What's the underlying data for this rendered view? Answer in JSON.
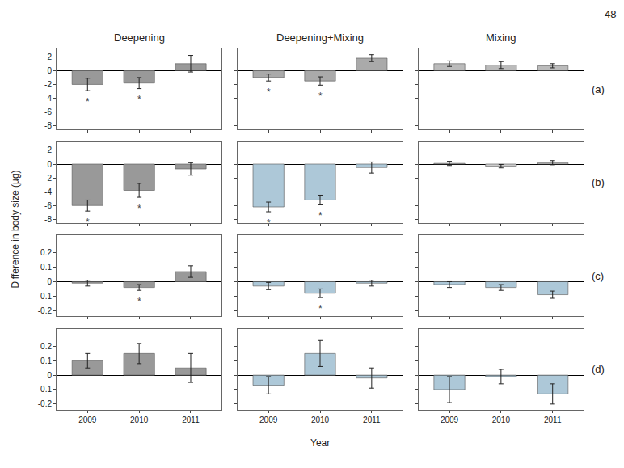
{
  "chart_data": {
    "type": "bar",
    "columns": [
      "Deepening",
      "Deepening+Mixing",
      "Mixing"
    ],
    "ylabel": "Difference in body size (µg)",
    "xlabel": "Year",
    "annotations": [
      "48"
    ],
    "categories": [
      "2009",
      "2010",
      "2011"
    ],
    "grid": false,
    "sig_label": "*",
    "rows": [
      {
        "label": "(a)",
        "ylim": [
          -8.5,
          3.2
        ],
        "yticks": [
          2,
          0,
          -2,
          -4,
          -6,
          -8
        ],
        "series": [
          {
            "color": "#999999",
            "values": [
              -2.0,
              -1.8,
              1.0
            ],
            "errors": [
              0.9,
              0.8,
              1.2
            ],
            "sig": [
              true,
              true,
              false
            ]
          },
          {
            "color": "#aaaaaa",
            "values": [
              -1.0,
              -1.5,
              1.8
            ],
            "errors": [
              0.5,
              0.6,
              0.5
            ],
            "sig": [
              true,
              true,
              false
            ]
          },
          {
            "color": "#bbbbbb",
            "values": [
              1.0,
              0.8,
              0.7
            ],
            "errors": [
              0.4,
              0.5,
              0.3
            ],
            "sig": [
              false,
              false,
              false
            ]
          }
        ]
      },
      {
        "label": "(b)",
        "ylim": [
          -8.5,
          3.2
        ],
        "yticks": [
          2,
          0,
          -2,
          -4,
          -6,
          -8
        ],
        "series": [
          {
            "color": "#999999",
            "values": [
              -6.0,
              -3.8,
              -0.7
            ],
            "errors": [
              0.8,
              1.0,
              0.9
            ],
            "sig": [
              true,
              true,
              false
            ]
          },
          {
            "color": "#adc8d8",
            "values": [
              -6.2,
              -5.2,
              -0.5
            ],
            "errors": [
              0.7,
              0.7,
              0.8
            ],
            "sig": [
              true,
              true,
              false
            ]
          },
          {
            "color": "#cccccc",
            "values": [
              0.1,
              -0.3,
              0.2
            ],
            "errors": [
              0.3,
              0.25,
              0.3
            ],
            "sig": [
              false,
              false,
              false
            ]
          }
        ]
      },
      {
        "label": "(c)",
        "ylim": [
          -0.24,
          0.32
        ],
        "yticks": [
          0.2,
          0.1,
          0,
          -0.1,
          -0.2
        ],
        "series": [
          {
            "color": "#999999",
            "values": [
              -0.01,
              -0.04,
              0.07
            ],
            "errors": [
              0.02,
              0.02,
              0.04
            ],
            "sig": [
              false,
              true,
              false
            ]
          },
          {
            "color": "#adc8d8",
            "values": [
              -0.03,
              -0.08,
              -0.01
            ],
            "errors": [
              0.025,
              0.03,
              0.02
            ],
            "sig": [
              false,
              true,
              false
            ]
          },
          {
            "color": "#adc8d8",
            "values": [
              -0.02,
              -0.04,
              -0.09
            ],
            "errors": [
              0.02,
              0.02,
              0.025
            ],
            "sig": [
              false,
              false,
              false
            ]
          }
        ]
      },
      {
        "label": "(d)",
        "ylim": [
          -0.24,
          0.32
        ],
        "yticks": [
          0.2,
          0.1,
          0,
          -0.1,
          -0.2
        ],
        "series": [
          {
            "color": "#999999",
            "values": [
              0.1,
              0.15,
              0.05
            ],
            "errors": [
              0.05,
              0.07,
              0.1
            ],
            "sig": [
              false,
              false,
              false
            ]
          },
          {
            "color": "#adc8d8",
            "values": [
              -0.07,
              0.15,
              -0.02
            ],
            "errors": [
              0.06,
              0.09,
              0.07
            ],
            "sig": [
              false,
              false,
              false
            ]
          },
          {
            "color": "#adc8d8",
            "values": [
              -0.1,
              -0.01,
              -0.13
            ],
            "errors": [
              0.09,
              0.05,
              0.07
            ],
            "sig": [
              false,
              false,
              false
            ]
          }
        ]
      }
    ]
  }
}
